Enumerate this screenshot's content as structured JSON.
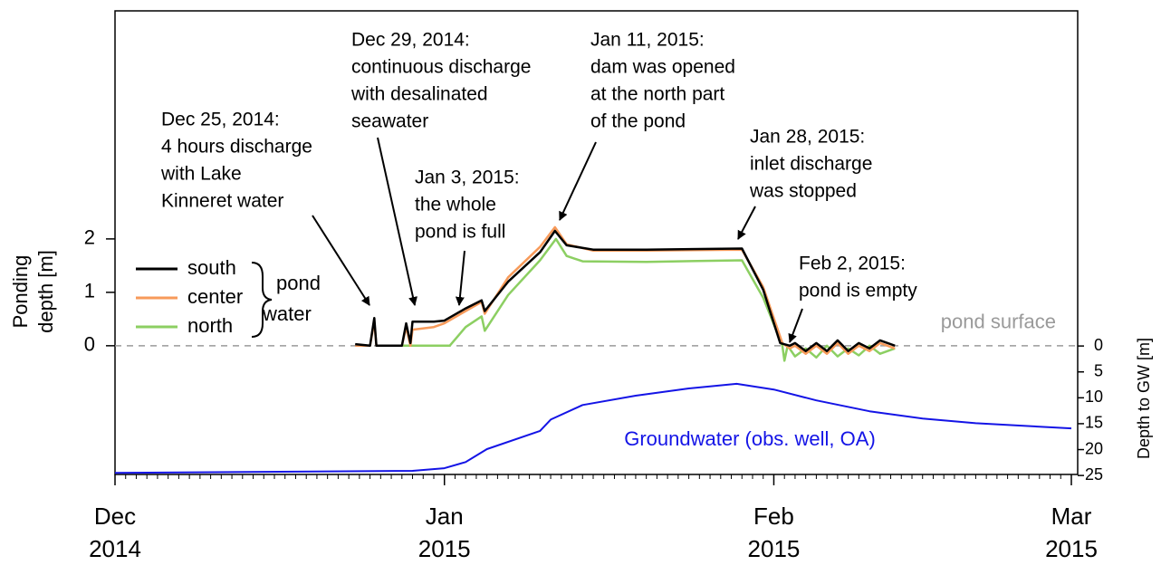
{
  "chart_data": {
    "type": "line",
    "y_label": [
      "Ponding",
      "depth [m]"
    ],
    "y2_label": "Depth to GW [m]",
    "xlim": [
      0,
      90
    ],
    "xticks": [
      {
        "value": 0,
        "label": "Dec 2014"
      },
      {
        "value": 31,
        "label": "Jan 2015"
      },
      {
        "value": 62,
        "label": "Feb 2015"
      },
      {
        "value": 90,
        "label": "Mar 2015"
      }
    ],
    "ylim": [
      -2.41,
      6.27
    ],
    "yticks": [
      0,
      1,
      2
    ],
    "y2lim": [
      24.8,
      -64.7
    ],
    "y2ticks": [
      0,
      5,
      10,
      15,
      20,
      25
    ],
    "legend": "left",
    "legend_group_label": [
      "pond",
      "water"
    ],
    "reference_line": {
      "value": 0,
      "label": "pond surface",
      "color": "#9a9a9a"
    },
    "series": [
      {
        "name": "south",
        "color": "#000000",
        "x": [
          22.6,
          24.0,
          24.4,
          24.6,
          27.0,
          27.4,
          27.8,
          28.0,
          30.0,
          31.0,
          33.0,
          34.5,
          34.8,
          37.0,
          40.0,
          41.4,
          42.5,
          45.0,
          50.0,
          59.0,
          61.0,
          62.6,
          63.5,
          64.0,
          65.0,
          66.0,
          67.0,
          68.0,
          69.0,
          70.0,
          71.0,
          72.0,
          73.4
        ],
        "values": [
          0.03,
          0.0,
          0.52,
          0.0,
          0.0,
          0.42,
          0.05,
          0.45,
          0.45,
          0.47,
          0.7,
          0.85,
          0.65,
          1.2,
          1.75,
          2.15,
          1.88,
          1.8,
          1.8,
          1.82,
          1.05,
          0.05,
          0.0,
          0.05,
          -0.1,
          0.05,
          -0.1,
          0.1,
          -0.1,
          0.05,
          -0.05,
          0.1,
          0.0
        ]
      },
      {
        "name": "center",
        "color": "#f79a5a",
        "x": [
          22.6,
          24.0,
          24.4,
          24.6,
          27.0,
          27.4,
          27.8,
          28.0,
          30.0,
          31.0,
          33.0,
          34.5,
          34.8,
          37.0,
          40.0,
          41.4,
          42.5,
          45.0,
          50.0,
          59.0,
          61.0,
          62.8,
          63.5,
          64.0,
          65.0,
          66.0,
          67.0,
          68.0,
          69.0,
          70.0,
          71.0,
          72.0,
          73.4
        ],
        "values": [
          0.0,
          0.0,
          0.45,
          0.0,
          0.0,
          0.35,
          0.0,
          0.3,
          0.35,
          0.42,
          0.65,
          0.82,
          0.6,
          1.28,
          1.85,
          2.22,
          1.9,
          1.78,
          1.78,
          1.8,
          1.1,
          0.05,
          -0.05,
          0.0,
          -0.15,
          0.0,
          -0.15,
          0.05,
          -0.15,
          0.0,
          -0.1,
          0.05,
          -0.05
        ]
      },
      {
        "name": "north",
        "color": "#8ccf62",
        "x": [
          26.0,
          31.5,
          33.0,
          34.5,
          34.8,
          37.0,
          40.0,
          41.5,
          42.5,
          44.0,
          50.0,
          59.0,
          61.0,
          62.8,
          63.0,
          63.3,
          64.0,
          65.0,
          66.0,
          67.0,
          68.0,
          69.0,
          70.0,
          71.0,
          72.0,
          73.4
        ],
        "values": [
          0.0,
          0.0,
          0.35,
          0.55,
          0.28,
          0.95,
          1.6,
          2.0,
          1.68,
          1.58,
          1.57,
          1.6,
          0.9,
          0.0,
          -0.28,
          0.0,
          -0.2,
          -0.05,
          -0.22,
          0.0,
          -0.2,
          -0.05,
          -0.18,
          0.0,
          -0.15,
          -0.05
        ]
      },
      {
        "name": "Groundwater (obs. well, OA)",
        "color": "#1414e6",
        "axis": "y2",
        "x": [
          0,
          28,
          31,
          33,
          35,
          40,
          41,
          44,
          49,
          54,
          58.5,
          62,
          66,
          71,
          76,
          81,
          90
        ],
        "values": [
          24.5,
          24.1,
          23.6,
          22.4,
          19.9,
          16.4,
          14.2,
          11.4,
          9.6,
          8.2,
          7.3,
          8.4,
          10.5,
          12.6,
          14.0,
          14.9,
          15.9
        ]
      }
    ],
    "annotations": [
      {
        "text": [
          "Dec 25, 2014:",
          "4 hours discharge",
          "with Lake",
          "Kinneret water"
        ]
      },
      {
        "text": [
          "Dec 29, 2014:",
          "continuous discharge",
          "with desalinated",
          "seawater"
        ]
      },
      {
        "text": [
          "Jan 3, 2015:",
          "the whole",
          "pond is full"
        ]
      },
      {
        "text": [
          "Jan 11, 2015:",
          "dam was opened",
          "at the north part",
          "of the pond"
        ]
      },
      {
        "text": [
          "Jan 28, 2015:",
          "inlet discharge",
          "was stopped"
        ]
      },
      {
        "text": [
          "Feb 2, 2015:",
          "pond is empty"
        ]
      }
    ]
  }
}
